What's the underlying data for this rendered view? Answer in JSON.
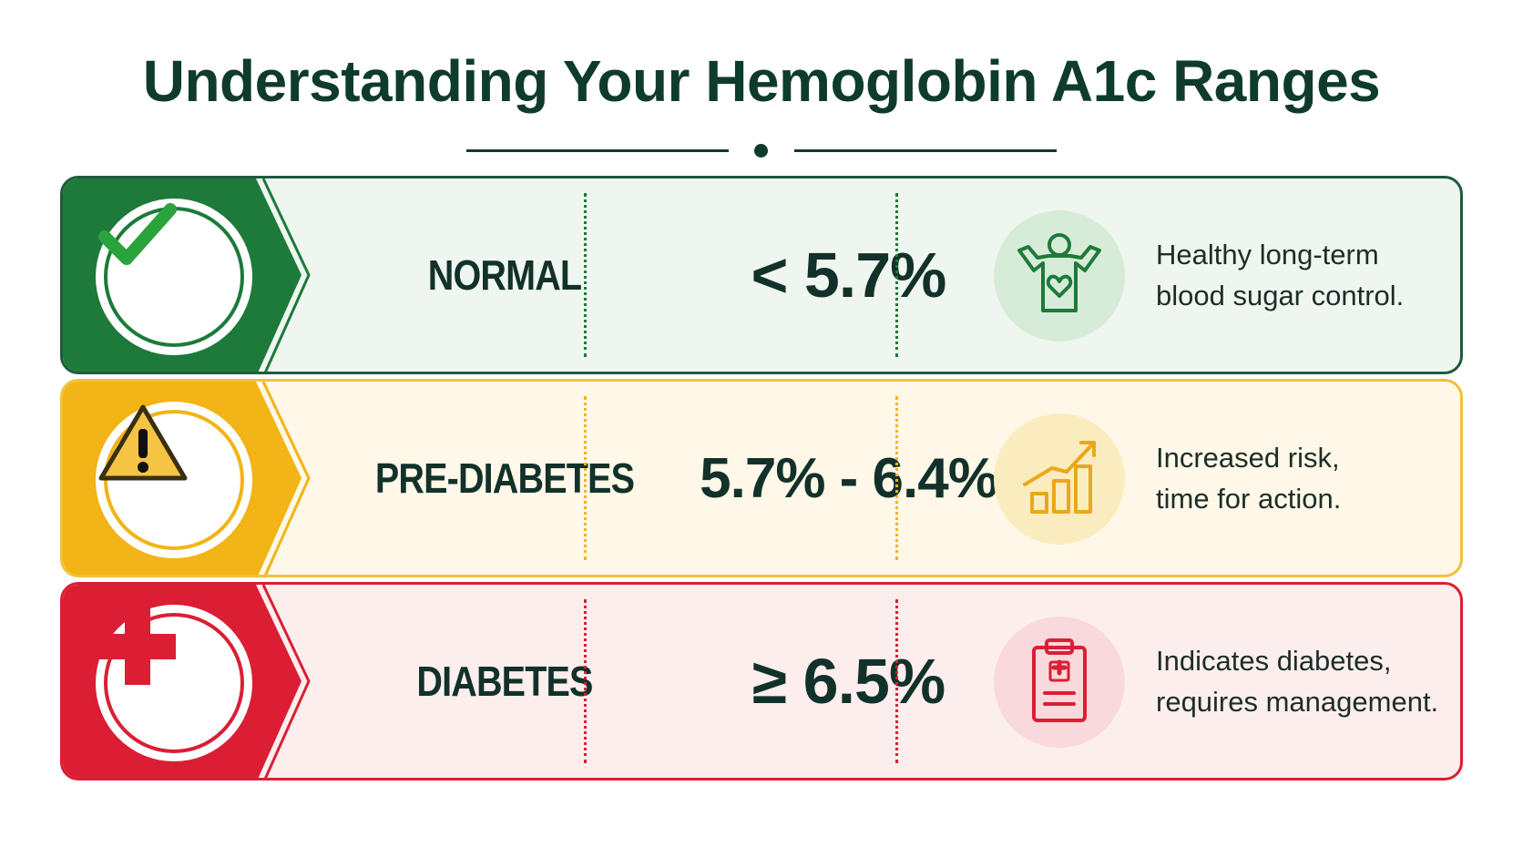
{
  "title": "Understanding Your Hemoglobin A1c Ranges",
  "colors": {
    "title": "#0e3b2e",
    "normal": "#1d7a3a",
    "prediabetes": "#f2b416",
    "diabetes": "#db1e34"
  },
  "rows": [
    {
      "label": "NORMAL",
      "value": "< 5.7%",
      "desc_line1": "Healthy long-term",
      "desc_line2": "blood sugar control.",
      "badge_icon": "checkmark-icon",
      "detail_icon": "happy-person-heart-icon"
    },
    {
      "label": "PRE-DIABETES",
      "value": "5.7% - 6.4%",
      "desc_line1": "Increased risk,",
      "desc_line2": "time for action.",
      "badge_icon": "warning-triangle-icon",
      "detail_icon": "rising-bar-chart-icon"
    },
    {
      "label": "DIABETES",
      "value": "≥ 6.5%",
      "desc_line1": "Indicates diabetes,",
      "desc_line2": "requires management.",
      "badge_icon": "medical-cross-icon",
      "detail_icon": "medical-clipboard-icon"
    }
  ]
}
